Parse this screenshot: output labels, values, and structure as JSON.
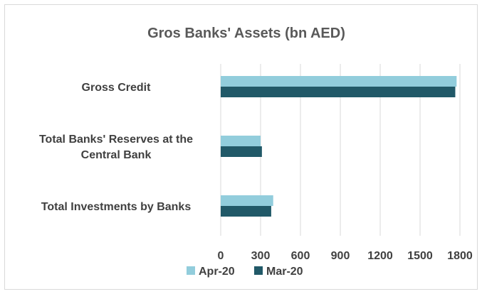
{
  "chart_data": {
    "type": "bar",
    "orientation": "horizontal",
    "title": "Gros Banks' Assets (bn AED)",
    "categories": [
      [
        "Gross Credit"
      ],
      [
        "Total Banks' Reserves at the",
        "Central Bank"
      ],
      [
        "Total Investments by Banks"
      ]
    ],
    "series": [
      {
        "name": "Apr-20",
        "color": "#92cddc",
        "values": [
          1775,
          300,
          395
        ]
      },
      {
        "name": "Mar-20",
        "color": "#215968",
        "values": [
          1765,
          310,
          380
        ]
      }
    ],
    "xlim": [
      0,
      1800
    ],
    "xticks": [
      "0",
      "300",
      "600",
      "900",
      "1200",
      "1500",
      "1800"
    ],
    "grid": "vertical",
    "legend_position": "bottom"
  }
}
